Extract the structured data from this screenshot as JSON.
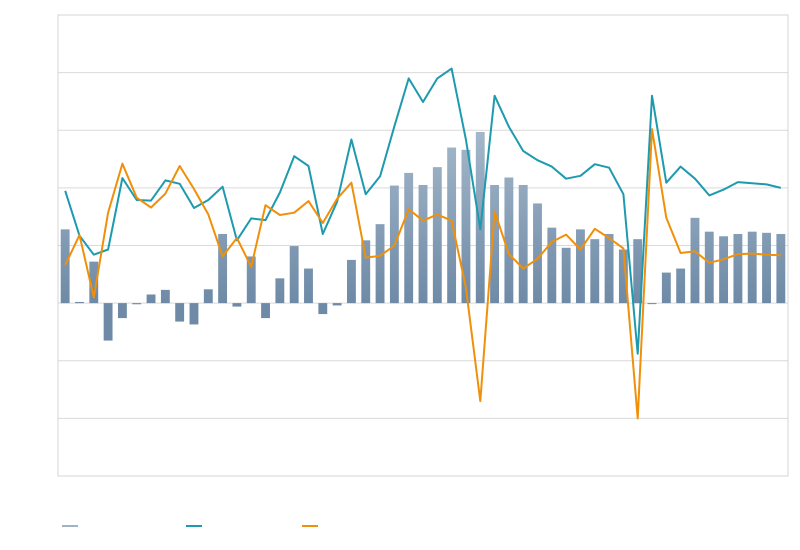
{
  "chart_data": {
    "type": "bar",
    "title": "",
    "xlabel": "",
    "ylabel": "",
    "ylim": [
      -3,
      5
    ],
    "grid": true,
    "legend_placement": "bottom-left",
    "x": [
      1,
      2,
      3,
      4,
      5,
      6,
      7,
      8,
      9,
      10,
      11,
      12,
      13,
      14,
      15,
      16,
      17,
      18,
      19,
      20,
      21,
      22,
      23,
      24,
      25,
      26,
      27,
      28,
      29,
      30,
      31,
      32,
      33,
      34,
      35,
      36,
      37,
      38,
      39,
      40,
      41,
      42,
      43,
      44,
      45,
      46,
      47,
      48,
      49,
      50,
      51
    ],
    "series": [
      {
        "kind": "bar",
        "color": "#9fb3c6",
        "values": [
          1.28,
          0.02,
          0.72,
          -0.65,
          -0.26,
          -0.02,
          0.15,
          0.23,
          -0.32,
          -0.37,
          0.24,
          1.2,
          -0.06,
          0.81,
          -0.26,
          0.43,
          0.99,
          0.6,
          -0.19,
          -0.04,
          0.75,
          1.09,
          1.37,
          2.04,
          2.26,
          2.05,
          2.36,
          2.7,
          2.66,
          2.97,
          2.05,
          2.18,
          2.05,
          1.73,
          1.31,
          0.96,
          1.28,
          1.11,
          1.2,
          0.93,
          1.11,
          0,
          0.53,
          0.6,
          1.48,
          1.24,
          1.16,
          1.2,
          1.24,
          1.22,
          1.2
        ]
      },
      {
        "kind": "line",
        "color": "#1e9aae",
        "values": [
          1.95,
          1.17,
          0.84,
          0.93,
          2.17,
          1.79,
          1.78,
          2.13,
          2.07,
          1.65,
          1.79,
          2.02,
          1.09,
          1.47,
          1.44,
          1.92,
          2.55,
          2.38,
          1.2,
          1.76,
          2.84,
          1.89,
          2.2,
          3.07,
          3.9,
          3.49,
          3.9,
          4.07,
          2.84,
          1.28,
          3.6,
          3.06,
          2.64,
          2.48,
          2.37,
          2.16,
          2.21,
          2.41,
          2.35,
          1.89,
          -0.88,
          3.6,
          2.09,
          2.37,
          2.16,
          1.87,
          1.97,
          2.1,
          2.08,
          2.06,
          2.0
        ]
      },
      {
        "kind": "line",
        "color": "#f0900a",
        "values": [
          0.66,
          1.18,
          0.1,
          1.57,
          2.42,
          1.83,
          1.66,
          1.9,
          2.38,
          1.98,
          1.54,
          0.81,
          1.13,
          0.63,
          1.7,
          1.53,
          1.57,
          1.77,
          1.39,
          1.81,
          2.09,
          0.79,
          0.82,
          1.0,
          1.63,
          1.43,
          1.54,
          1.43,
          0.27,
          -1.7,
          1.59,
          0.85,
          0.6,
          0.77,
          1.06,
          1.19,
          0.93,
          1.29,
          1.13,
          0.95,
          -2.0,
          3.02,
          1.48,
          0.87,
          0.9,
          0.7,
          0.76,
          0.85,
          0.86,
          0.84,
          0.83
        ]
      }
    ]
  }
}
